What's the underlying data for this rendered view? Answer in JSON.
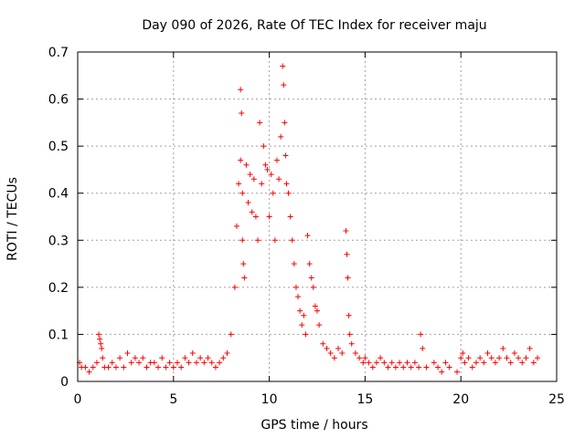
{
  "chart_data": {
    "type": "scatter",
    "title": "Day 090 of 2026, Rate Of TEC Index for receiver maju",
    "xlabel": "GPS time / hours",
    "ylabel": "ROTI / TECUs",
    "xlim": [
      0,
      25
    ],
    "ylim": [
      0,
      0.7
    ],
    "xticks": [
      "0",
      "5",
      "10",
      "15",
      "20",
      "25"
    ],
    "yticks": [
      "0",
      "0.1",
      "0.2",
      "0.3",
      "0.4",
      "0.5",
      "0.6",
      "0.7"
    ],
    "grid": true,
    "marker": "plus",
    "color": "#ff0000",
    "series": [
      {
        "x": [
          0.1,
          0.2,
          0.4,
          0.6,
          0.8,
          1.0,
          1.1,
          1.15,
          1.2,
          1.25,
          1.3,
          1.4,
          1.6,
          1.8,
          2.0,
          2.2,
          2.4,
          2.6,
          2.8,
          3.0,
          3.2,
          3.4,
          3.6,
          3.8,
          4.0,
          4.2,
          4.4,
          4.6,
          4.8,
          5.0,
          5.2,
          5.4,
          5.6,
          5.8,
          6.0,
          6.2,
          6.4,
          6.6,
          6.8,
          7.0,
          7.2,
          7.4,
          7.6,
          7.8,
          8.0,
          8.2,
          8.3,
          8.4,
          8.5,
          8.5,
          8.55,
          8.6,
          8.6,
          8.65,
          8.7,
          8.8,
          8.9,
          9.0,
          9.1,
          9.2,
          9.3,
          9.4,
          9.5,
          9.6,
          9.7,
          9.8,
          9.9,
          10.0,
          10.1,
          10.2,
          10.3,
          10.4,
          10.5,
          10.6,
          10.7,
          10.75,
          10.8,
          10.85,
          10.9,
          11.0,
          11.1,
          11.2,
          11.3,
          11.4,
          11.5,
          11.6,
          11.7,
          11.8,
          11.9,
          12.0,
          12.1,
          12.2,
          12.3,
          12.4,
          12.5,
          12.6,
          12.8,
          13.0,
          13.2,
          13.4,
          13.6,
          13.8,
          14.0,
          14.05,
          14.1,
          14.15,
          14.2,
          14.3,
          14.5,
          14.7,
          14.9,
          15.0,
          15.2,
          15.4,
          15.6,
          15.8,
          16.0,
          16.2,
          16.4,
          16.6,
          16.8,
          17.0,
          17.2,
          17.4,
          17.6,
          17.8,
          17.9,
          18.0,
          18.2,
          18.6,
          18.8,
          19.0,
          19.2,
          19.4,
          19.8,
          20.0,
          20.1,
          20.2,
          20.4,
          20.6,
          20.8,
          21.0,
          21.2,
          21.4,
          21.6,
          21.8,
          22.0,
          22.2,
          22.4,
          22.6,
          22.8,
          23.0,
          23.2,
          23.4,
          23.6,
          23.8,
          24.0
        ],
        "y": [
          0.04,
          0.03,
          0.03,
          0.02,
          0.03,
          0.04,
          0.1,
          0.09,
          0.08,
          0.07,
          0.05,
          0.03,
          0.03,
          0.04,
          0.03,
          0.05,
          0.03,
          0.06,
          0.04,
          0.05,
          0.04,
          0.05,
          0.03,
          0.04,
          0.04,
          0.03,
          0.05,
          0.03,
          0.04,
          0.03,
          0.04,
          0.03,
          0.05,
          0.04,
          0.06,
          0.04,
          0.05,
          0.04,
          0.05,
          0.04,
          0.03,
          0.04,
          0.05,
          0.06,
          0.1,
          0.2,
          0.33,
          0.42,
          0.47,
          0.62,
          0.57,
          0.4,
          0.3,
          0.25,
          0.22,
          0.46,
          0.38,
          0.44,
          0.36,
          0.43,
          0.35,
          0.3,
          0.55,
          0.42,
          0.5,
          0.46,
          0.45,
          0.35,
          0.44,
          0.4,
          0.3,
          0.47,
          0.43,
          0.52,
          0.67,
          0.63,
          0.55,
          0.48,
          0.42,
          0.4,
          0.35,
          0.3,
          0.25,
          0.2,
          0.18,
          0.15,
          0.12,
          0.14,
          0.1,
          0.31,
          0.25,
          0.22,
          0.2,
          0.16,
          0.15,
          0.12,
          0.08,
          0.07,
          0.06,
          0.05,
          0.07,
          0.06,
          0.32,
          0.27,
          0.22,
          0.14,
          0.1,
          0.08,
          0.06,
          0.05,
          0.04,
          0.05,
          0.04,
          0.03,
          0.04,
          0.05,
          0.04,
          0.03,
          0.04,
          0.03,
          0.04,
          0.03,
          0.04,
          0.03,
          0.04,
          0.03,
          0.1,
          0.07,
          0.03,
          0.04,
          0.03,
          0.02,
          0.04,
          0.03,
          0.02,
          0.05,
          0.06,
          0.04,
          0.05,
          0.03,
          0.04,
          0.05,
          0.04,
          0.06,
          0.05,
          0.04,
          0.05,
          0.07,
          0.05,
          0.04,
          0.06,
          0.05,
          0.04,
          0.05,
          0.07,
          0.04,
          0.05
        ]
      }
    ]
  }
}
